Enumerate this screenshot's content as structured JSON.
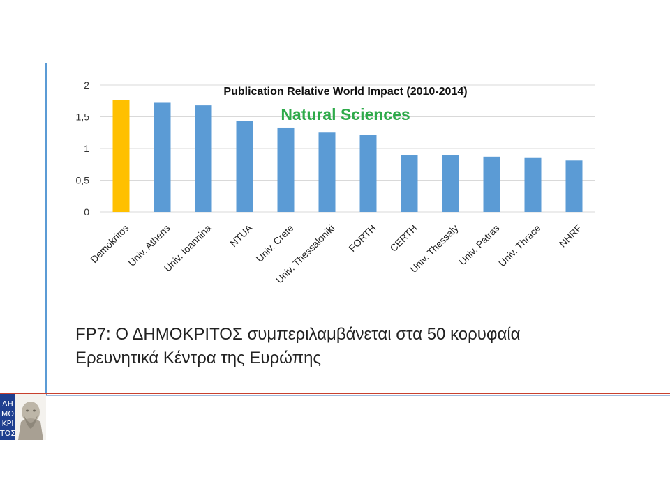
{
  "caption": {
    "line1": "FP7: Ο ΔΗΜΟΚΡΙΤΟΣ συμπεριλαμβάνεται στα 50 κορυφαία",
    "line2": "Ερευνητικά Κέντρα της Ευρώπης"
  },
  "logo": {
    "text": "ΔΗΜΟΚΡΙΤΟΣ"
  },
  "chart_data": {
    "type": "bar",
    "title": "Publication Relative World Impact (2010-2014)",
    "subtitle": "Natural Sciences",
    "categories": [
      "Demokritos",
      "Univ. Athens",
      "Univ. Ioannina",
      "NTUA",
      "Univ. Crete",
      "Univ. Thessaloniki",
      "FORTH",
      "CERTH",
      "Univ. Thessaly",
      "Univ. Patras",
      "Univ. Thrace",
      "NHRF"
    ],
    "values": [
      1.76,
      1.72,
      1.68,
      1.43,
      1.33,
      1.25,
      1.21,
      0.89,
      0.89,
      0.87,
      0.86,
      0.81
    ],
    "yticks": [
      "0",
      "0,5",
      "1",
      "1,5",
      "2"
    ],
    "ylim": [
      0,
      2
    ],
    "grid": true,
    "highlight_index": 0,
    "colors": {
      "default": "#5b9bd5",
      "highlight": "#ffc000",
      "subtitle": "#2eaa4a",
      "grid": "#d9d9d9"
    }
  }
}
